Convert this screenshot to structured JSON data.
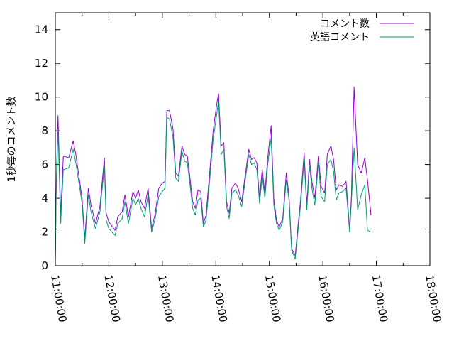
{
  "chart_data": {
    "type": "line",
    "title": "",
    "xlabel": "",
    "ylabel": "1秒毎のコメント数",
    "xlim": [
      "11:00:00",
      "18:00:00"
    ],
    "ylim": [
      0,
      15
    ],
    "x_ticks": [
      "11:00:00",
      "12:00:00",
      "13:00:00",
      "14:00:00",
      "15:00:00",
      "16:00:00",
      "17:00:00",
      "18:00:00"
    ],
    "y_ticks": [
      "0",
      "2",
      "4",
      "6",
      "8",
      "10",
      "12",
      "14"
    ],
    "legend_position": "top-right",
    "grid": false,
    "series": [
      {
        "name": "コメント数",
        "color": "#9400d3",
        "points": [
          [
            "11:00:00",
            0.2
          ],
          [
            "11:01:00",
            4.8
          ],
          [
            "11:03:00",
            8.9
          ],
          [
            "11:06:00",
            3.0
          ],
          [
            "11:09:00",
            6.5
          ],
          [
            "11:15:00",
            6.4
          ],
          [
            "11:20:00",
            7.4
          ],
          [
            "11:23:00",
            6.6
          ],
          [
            "11:30:00",
            4.0
          ],
          [
            "11:33:00",
            1.6
          ],
          [
            "11:37:00",
            4.6
          ],
          [
            "11:40:00",
            3.6
          ],
          [
            "11:45:00",
            2.5
          ],
          [
            "11:50:00",
            3.5
          ],
          [
            "11:55:00",
            6.4
          ],
          [
            "11:57:00",
            3.1
          ],
          [
            "12:00:00",
            2.6
          ],
          [
            "12:07:00",
            2.1
          ],
          [
            "12:10:00",
            2.9
          ],
          [
            "12:15:00",
            3.2
          ],
          [
            "12:18:00",
            4.2
          ],
          [
            "12:22:00",
            2.9
          ],
          [
            "12:27:00",
            4.4
          ],
          [
            "12:30:00",
            4.0
          ],
          [
            "12:33:00",
            4.5
          ],
          [
            "12:36:00",
            3.8
          ],
          [
            "12:40:00",
            3.4
          ],
          [
            "12:44:00",
            4.6
          ],
          [
            "12:48:00",
            2.2
          ],
          [
            "12:52:00",
            3.1
          ],
          [
            "12:56:00",
            4.6
          ],
          [
            "13:00:00",
            4.9
          ],
          [
            "13:03:00",
            5.0
          ],
          [
            "13:05:00",
            9.2
          ],
          [
            "13:08:00",
            9.2
          ],
          [
            "13:12:00",
            8.1
          ],
          [
            "13:15:00",
            5.5
          ],
          [
            "13:18:00",
            5.3
          ],
          [
            "13:22:00",
            7.1
          ],
          [
            "13:25:00",
            6.6
          ],
          [
            "13:28:00",
            6.5
          ],
          [
            "13:31:00",
            5.2
          ],
          [
            "13:34:00",
            3.8
          ],
          [
            "13:37:00",
            3.4
          ],
          [
            "13:40:00",
            4.5
          ],
          [
            "13:43:00",
            4.4
          ],
          [
            "13:46:00",
            2.5
          ],
          [
            "13:49:00",
            3.0
          ],
          [
            "13:53:00",
            5.5
          ],
          [
            "13:57:00",
            8.0
          ],
          [
            "14:01:00",
            9.6
          ],
          [
            "14:03:00",
            10.2
          ],
          [
            "14:06:00",
            7.1
          ],
          [
            "14:09:00",
            7.3
          ],
          [
            "14:12:00",
            3.8
          ],
          [
            "14:15:00",
            3.1
          ],
          [
            "14:18:00",
            4.6
          ],
          [
            "14:22:00",
            4.9
          ],
          [
            "14:25:00",
            4.6
          ],
          [
            "14:29:00",
            3.8
          ],
          [
            "14:33:00",
            5.4
          ],
          [
            "14:37:00",
            6.9
          ],
          [
            "14:40:00",
            6.3
          ],
          [
            "14:43:00",
            6.4
          ],
          [
            "14:46:00",
            6.1
          ],
          [
            "14:49:00",
            4.0
          ],
          [
            "14:52:00",
            5.7
          ],
          [
            "14:55:00",
            4.3
          ],
          [
            "14:58:00",
            6.3
          ],
          [
            "15:02:00",
            8.3
          ],
          [
            "15:05:00",
            4.0
          ],
          [
            "15:08:00",
            2.7
          ],
          [
            "15:11:00",
            2.3
          ],
          [
            "15:15:00",
            2.8
          ],
          [
            "15:19:00",
            5.5
          ],
          [
            "15:22:00",
            4.2
          ],
          [
            "15:25:00",
            1.0
          ],
          [
            "15:29:00",
            0.6
          ],
          [
            "15:32:00",
            2.3
          ],
          [
            "15:35:00",
            3.9
          ],
          [
            "15:39:00",
            6.7
          ],
          [
            "15:42:00",
            3.6
          ],
          [
            "15:45:00",
            6.3
          ],
          [
            "15:48:00",
            4.9
          ],
          [
            "15:51:00",
            4.0
          ],
          [
            "15:55:00",
            6.5
          ],
          [
            "15:58:00",
            4.7
          ],
          [
            "16:02:00",
            4.3
          ],
          [
            "16:05:00",
            6.6
          ],
          [
            "16:09:00",
            7.1
          ],
          [
            "16:12:00",
            6.3
          ],
          [
            "16:15:00",
            4.5
          ],
          [
            "16:18:00",
            4.8
          ],
          [
            "16:22:00",
            4.7
          ],
          [
            "16:26:00",
            5.0
          ],
          [
            "16:30:00",
            2.2
          ],
          [
            "16:32:00",
            4.1
          ],
          [
            "16:35:00",
            10.6
          ],
          [
            "16:39:00",
            6.0
          ],
          [
            "16:43:00",
            5.5
          ],
          [
            "16:47:00",
            6.4
          ],
          [
            "16:50:00",
            5.1
          ],
          [
            "16:54:00",
            3.0
          ]
        ]
      },
      {
        "name": "英語コメント",
        "color": "#009e73",
        "points": [
          [
            "11:00:00",
            0.1
          ],
          [
            "11:01:00",
            4.3
          ],
          [
            "11:03:00",
            8.1
          ],
          [
            "11:06:00",
            2.5
          ],
          [
            "11:09:00",
            5.7
          ],
          [
            "11:15:00",
            5.8
          ],
          [
            "11:20:00",
            6.9
          ],
          [
            "11:23:00",
            6.1
          ],
          [
            "11:30:00",
            3.7
          ],
          [
            "11:33:00",
            1.3
          ],
          [
            "11:37:00",
            4.2
          ],
          [
            "11:40:00",
            3.2
          ],
          [
            "11:45:00",
            2.2
          ],
          [
            "11:50:00",
            3.2
          ],
          [
            "11:55:00",
            5.9
          ],
          [
            "11:57:00",
            2.7
          ],
          [
            "12:00:00",
            2.2
          ],
          [
            "12:07:00",
            1.8
          ],
          [
            "12:10:00",
            2.5
          ],
          [
            "12:15:00",
            2.8
          ],
          [
            "12:18:00",
            3.8
          ],
          [
            "12:22:00",
            2.5
          ],
          [
            "12:27:00",
            4.0
          ],
          [
            "12:30:00",
            3.6
          ],
          [
            "12:33:00",
            4.0
          ],
          [
            "12:36:00",
            3.4
          ],
          [
            "12:40:00",
            2.9
          ],
          [
            "12:44:00",
            4.2
          ],
          [
            "12:48:00",
            2.0
          ],
          [
            "12:52:00",
            2.8
          ],
          [
            "12:56:00",
            4.1
          ],
          [
            "13:00:00",
            4.4
          ],
          [
            "13:03:00",
            4.6
          ],
          [
            "13:05:00",
            8.8
          ],
          [
            "13:08:00",
            8.7
          ],
          [
            "13:12:00",
            7.6
          ],
          [
            "13:15:00",
            5.2
          ],
          [
            "13:18:00",
            5.0
          ],
          [
            "13:22:00",
            6.8
          ],
          [
            "13:25:00",
            6.2
          ],
          [
            "13:28:00",
            6.1
          ],
          [
            "13:31:00",
            4.8
          ],
          [
            "13:34:00",
            3.4
          ],
          [
            "13:37:00",
            3.0
          ],
          [
            "13:40:00",
            3.9
          ],
          [
            "13:43:00",
            4.0
          ],
          [
            "13:46:00",
            2.3
          ],
          [
            "13:49:00",
            2.7
          ],
          [
            "13:53:00",
            5.0
          ],
          [
            "13:57:00",
            7.5
          ],
          [
            "14:01:00",
            9.0
          ],
          [
            "14:03:00",
            9.8
          ],
          [
            "14:06:00",
            6.6
          ],
          [
            "14:09:00",
            6.9
          ],
          [
            "14:12:00",
            3.5
          ],
          [
            "14:15:00",
            2.8
          ],
          [
            "14:18:00",
            4.3
          ],
          [
            "14:22:00",
            4.5
          ],
          [
            "14:25:00",
            4.2
          ],
          [
            "14:29:00",
            3.5
          ],
          [
            "14:33:00",
            5.1
          ],
          [
            "14:37:00",
            6.6
          ],
          [
            "14:40:00",
            6.0
          ],
          [
            "14:43:00",
            6.1
          ],
          [
            "14:46:00",
            5.7
          ],
          [
            "14:49:00",
            3.7
          ],
          [
            "14:52:00",
            5.3
          ],
          [
            "14:55:00",
            4.0
          ],
          [
            "14:58:00",
            5.9
          ],
          [
            "15:02:00",
            7.6
          ],
          [
            "15:05:00",
            3.6
          ],
          [
            "15:08:00",
            2.5
          ],
          [
            "15:11:00",
            2.1
          ],
          [
            "15:15:00",
            2.6
          ],
          [
            "15:19:00",
            5.1
          ],
          [
            "15:22:00",
            3.9
          ],
          [
            "15:25:00",
            0.9
          ],
          [
            "15:29:00",
            0.4
          ],
          [
            "15:32:00",
            2.0
          ],
          [
            "15:35:00",
            3.6
          ],
          [
            "15:39:00",
            6.3
          ],
          [
            "15:42:00",
            3.3
          ],
          [
            "15:45:00",
            5.9
          ],
          [
            "15:48:00",
            4.5
          ],
          [
            "15:51:00",
            3.6
          ],
          [
            "15:55:00",
            6.1
          ],
          [
            "15:58:00",
            4.1
          ],
          [
            "16:02:00",
            3.8
          ],
          [
            "16:05:00",
            6.0
          ],
          [
            "16:09:00",
            6.3
          ],
          [
            "16:12:00",
            5.6
          ],
          [
            "16:15:00",
            3.9
          ],
          [
            "16:18:00",
            4.3
          ],
          [
            "16:22:00",
            4.4
          ],
          [
            "16:26:00",
            4.6
          ],
          [
            "16:30:00",
            2.0
          ],
          [
            "16:32:00",
            3.8
          ],
          [
            "16:35:00",
            7.0
          ],
          [
            "16:39:00",
            3.3
          ],
          [
            "16:43:00",
            4.2
          ],
          [
            "16:47:00",
            4.8
          ],
          [
            "16:50:00",
            2.1
          ],
          [
            "16:54:00",
            2.0
          ]
        ]
      }
    ]
  }
}
